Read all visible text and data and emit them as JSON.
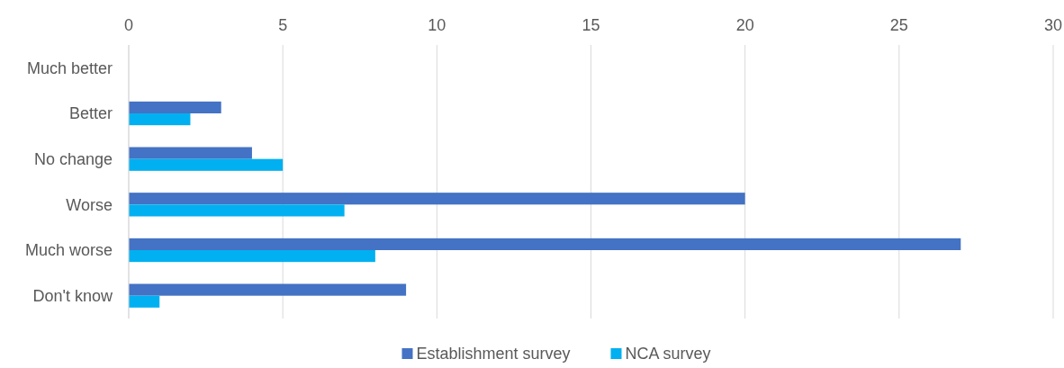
{
  "chart_data": {
    "type": "bar",
    "orientation": "horizontal",
    "categories": [
      "Much better",
      "Better",
      "No change",
      "Worse",
      "Much worse",
      "Don't know"
    ],
    "series": [
      {
        "name": "Establishment survey",
        "color": "#4472c4",
        "values": [
          0,
          3,
          4,
          20,
          27,
          9
        ]
      },
      {
        "name": "NCA survey",
        "color": "#00b0f0",
        "values": [
          0,
          2,
          5,
          7,
          8,
          1
        ]
      }
    ],
    "xlim": [
      0,
      30
    ],
    "xticks": [
      0,
      5,
      10,
      15,
      20,
      25,
      30
    ],
    "grid": "x",
    "legend": "bottom"
  }
}
